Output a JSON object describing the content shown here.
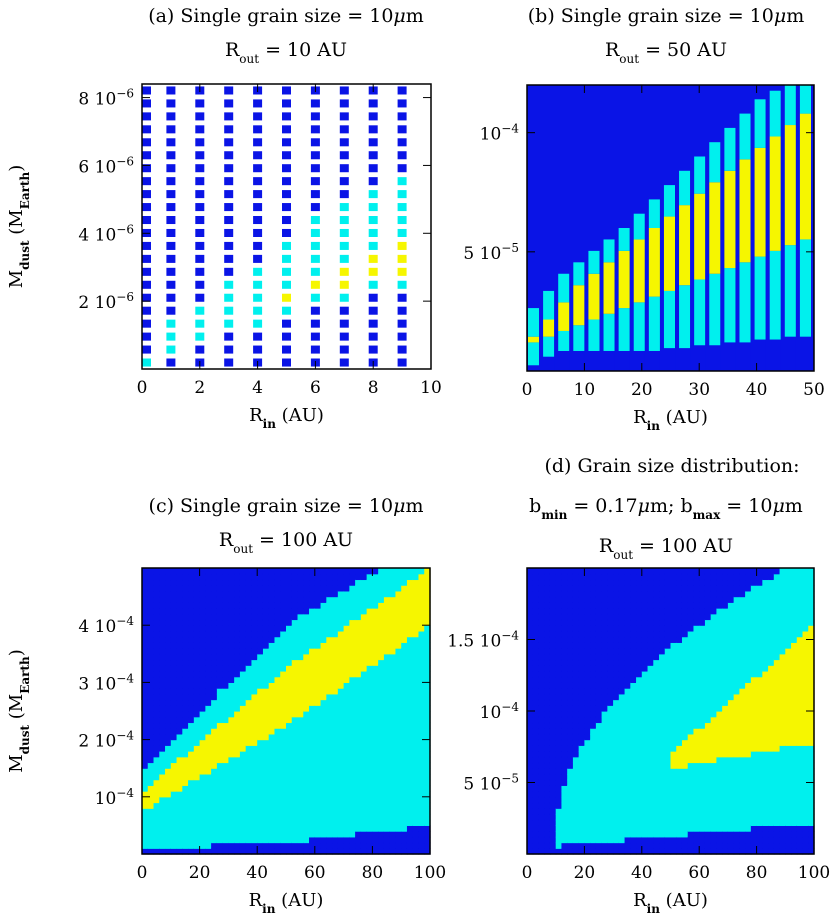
{
  "colors": {
    "dark_blue": "#0a14e6",
    "cyan": "#00f0ee",
    "yellow": "#f6f600",
    "white": "#ffffff",
    "axis": "#000000"
  },
  "chart_data": [
    {
      "id": "a",
      "type": "heatmap",
      "title_prefix": "(a) Single grain size = 10",
      "title_mu": "μ",
      "title_unit": "m",
      "title2_main": "R",
      "title2_sub": "out",
      "title2_rest": " = 10 AU",
      "xlabel_main": "R",
      "xlabel_sub": "in",
      "xlabel_unit": " (AU)",
      "ylabel_main": "M",
      "ylabel_sub1": "dust",
      "ylabel_mid": " (M",
      "ylabel_sub2": "Earth",
      "ylabel_end": ")",
      "xlim": [
        0,
        10
      ],
      "ylim": [
        0,
        8.4e-06
      ],
      "xticks": [
        0,
        2,
        4,
        6,
        8,
        10
      ],
      "xtick_labels": [
        "0",
        "2",
        "4",
        "6",
        "8",
        "10"
      ],
      "yticks": [
        2e-06,
        4e-06,
        6e-06,
        8e-06
      ],
      "ytick_coef": [
        "2",
        "4",
        "6",
        "8"
      ],
      "ytick_base": "10",
      "ytick_exp": [
        "−6",
        "−6",
        "−6",
        "−6"
      ],
      "grid": "columns",
      "x_centers": [
        0,
        1,
        2,
        3,
        4,
        5,
        6,
        7,
        8,
        9
      ],
      "rows": 22,
      "low_dark_rows": [
        0,
        0,
        0,
        0,
        0,
        0,
        0,
        0,
        0,
        0
      ],
      "cyan_lower": [
        -1,
        1,
        2,
        2.5,
        3,
        3.6,
        4.2,
        4.8,
        5.4,
        6.0
      ],
      "yellow_lower": [
        99,
        99,
        99,
        99,
        99,
        5.0,
        5.5,
        6.0,
        6.5,
        7.0
      ],
      "yellow_upper": [
        99,
        99,
        99,
        99,
        99,
        6.0,
        6.8,
        7.6,
        8.4,
        9.2
      ],
      "cyan_upper": [
        0.5,
        3.5,
        5.0,
        6.5,
        8.0,
        10.0,
        11.5,
        12.5,
        13.5,
        14.5
      ]
    },
    {
      "id": "b",
      "type": "heatmap",
      "title_prefix": "(b) Single grain size = 10",
      "title_mu": "μ",
      "title_unit": "m",
      "title2_main": "R",
      "title2_sub": "out",
      "title2_rest": " = 50 AU",
      "xlabel_main": "R",
      "xlabel_sub": "in",
      "xlabel_unit": " (AU)",
      "xlim": [
        0,
        50
      ],
      "ylim": [
        0,
        0.00012
      ],
      "xticks": [
        0,
        10,
        20,
        30,
        40,
        50
      ],
      "xtick_labels": [
        "0",
        "10",
        "20",
        "30",
        "40",
        "50"
      ],
      "yticks": [
        5e-05,
        0.0001
      ],
      "ytick_coef": [
        "5",
        ""
      ],
      "ytick_base": "10",
      "ytick_exp": [
        "−5",
        "−4"
      ],
      "grid": "columns",
      "columns": 19,
      "low_dark_frac": [
        0.02,
        0.05,
        0.07,
        0.07,
        0.07,
        0.07,
        0.07,
        0.07,
        0.07,
        0.08,
        0.08,
        0.09,
        0.09,
        0.1,
        0.1,
        0.11,
        0.11,
        0.12,
        0.12
      ],
      "cyan_lower_frac": [
        0.02,
        0.05,
        0.07,
        0.07,
        0.07,
        0.07,
        0.07,
        0.07,
        0.07,
        0.08,
        0.08,
        0.09,
        0.09,
        0.1,
        0.1,
        0.11,
        0.11,
        0.12,
        0.12
      ],
      "yellow_lower_frac": [
        0.1,
        0.12,
        0.14,
        0.16,
        0.18,
        0.2,
        0.22,
        0.24,
        0.26,
        0.28,
        0.3,
        0.32,
        0.34,
        0.36,
        0.38,
        0.4,
        0.42,
        0.44,
        0.46
      ],
      "yellow_upper_frac": [
        0.12,
        0.18,
        0.24,
        0.3,
        0.34,
        0.38,
        0.42,
        0.46,
        0.5,
        0.54,
        0.58,
        0.62,
        0.66,
        0.7,
        0.74,
        0.78,
        0.82,
        0.86,
        0.9
      ],
      "cyan_upper_frac": [
        0.22,
        0.28,
        0.34,
        0.38,
        0.42,
        0.46,
        0.5,
        0.55,
        0.6,
        0.65,
        0.7,
        0.75,
        0.8,
        0.85,
        0.9,
        0.95,
        0.98,
        1.0,
        1.0
      ]
    },
    {
      "id": "c",
      "type": "heatmap",
      "title_prefix": "(c) Single grain size = 10",
      "title_mu": "μ",
      "title_unit": "m",
      "title2_main": "R",
      "title2_sub": "out",
      "title2_rest": " = 100 AU",
      "xlabel_main": "R",
      "xlabel_sub": "in",
      "xlabel_unit": " (AU)",
      "ylabel_main": "M",
      "ylabel_sub1": "dust",
      "ylabel_mid": " (M",
      "ylabel_sub2": "Earth",
      "ylabel_end": ")",
      "xlim": [
        0,
        100
      ],
      "ylim": [
        0,
        0.0005
      ],
      "xticks": [
        0,
        20,
        40,
        60,
        80,
        100
      ],
      "xtick_labels": [
        "0",
        "20",
        "40",
        "60",
        "80",
        "100"
      ],
      "yticks": [
        0.0001,
        0.0002,
        0.0003,
        0.0004
      ],
      "ytick_coef": [
        "",
        "2",
        "3",
        "4"
      ],
      "ytick_base": "10",
      "ytick_exp": [
        "−4",
        "−4",
        "−4",
        "−4"
      ],
      "grid": "fine",
      "cols": 50,
      "rows": 50,
      "bands": {
        "low_dark": [
          0.02,
          0.04,
          0.1
        ],
        "cyan_low": [
          0.1,
          0.35,
          0.6
        ],
        "yellow_low": [
          0.15,
          0.45,
          0.8
        ],
        "yellow_high": [
          0.22,
          0.65,
          1.0
        ],
        "cyan_high": [
          0.3,
          0.8,
          1.1
        ]
      }
    },
    {
      "id": "d",
      "type": "heatmap",
      "title_prefix": "(d) Grain size distribution:",
      "title2_b1": "b",
      "title2_b1_sub": "min",
      "title2_mid": " = 0.17",
      "title2_mu": "μ",
      "title2_mid2": "m; b",
      "title2_b2_sub": "max",
      "title2_end": " = 10",
      "title2_mu2": "μ",
      "title2_unit": "m",
      "title3_main": "R",
      "title3_sub": "out",
      "title3_rest": " = 100 AU",
      "xlabel_main": "R",
      "xlabel_sub": "in",
      "xlabel_unit": " (AU)",
      "xlim": [
        0,
        100
      ],
      "ylim": [
        0,
        0.0002
      ],
      "xticks": [
        0,
        20,
        40,
        60,
        80,
        100
      ],
      "xtick_labels": [
        "0",
        "20",
        "40",
        "60",
        "80",
        "100"
      ],
      "yticks": [
        5e-05,
        0.0001,
        0.00015
      ],
      "ytick_coef": [
        "5",
        "",
        "1.5"
      ],
      "ytick_base": "10",
      "ytick_exp": [
        "−5",
        "−4",
        "−4"
      ],
      "grid": "fine",
      "cols": 50,
      "rows": 50
    }
  ]
}
